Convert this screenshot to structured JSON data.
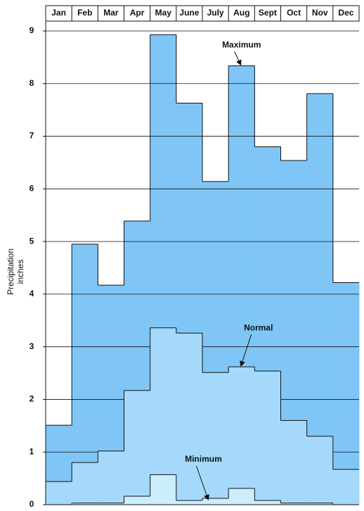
{
  "chart_data": {
    "type": "step-area",
    "y_label": "Precipitation inches",
    "categories": [
      "Jan",
      "Feb",
      "Mar",
      "Apr",
      "May",
      "June",
      "July",
      "Aug",
      "Sept",
      "Oct",
      "Nov",
      "Dec"
    ],
    "series": [
      {
        "name": "Maximum",
        "color": "#7fc6f6",
        "values": [
          1.51,
          4.95,
          4.17,
          5.39,
          8.93,
          7.63,
          6.14,
          8.34,
          6.8,
          6.54,
          7.81,
          4.22
        ]
      },
      {
        "name": "Normal",
        "color": "#a5d9fb",
        "values": [
          0.44,
          0.8,
          1.02,
          2.17,
          3.36,
          3.26,
          2.51,
          2.62,
          2.54,
          1.6,
          1.3,
          0.67
        ]
      },
      {
        "name": "Minimum",
        "color": "#cdeefd",
        "values": [
          0,
          0.03,
          0.03,
          0.16,
          0.57,
          0.08,
          0.12,
          0.31,
          0.08,
          0.03,
          0.03,
          0
        ]
      }
    ],
    "ylim": [
      0,
      9
    ],
    "yticks": [
      0,
      1,
      2,
      3,
      4,
      5,
      6,
      7,
      8,
      9
    ],
    "grid": true
  }
}
